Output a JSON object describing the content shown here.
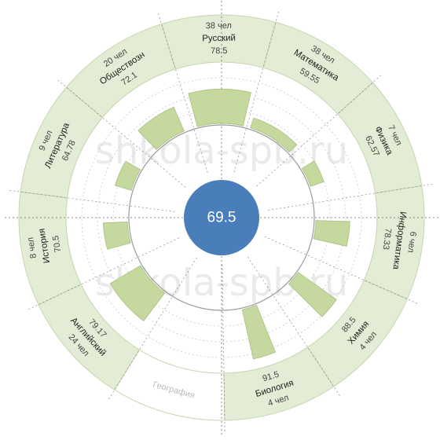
{
  "watermark": "shkola-spb.ru",
  "chart_data": {
    "type": "polar-bar",
    "center_value": "69.5",
    "categories": [
      {
        "name": "Математика",
        "count": "38 чел",
        "value": 59.55,
        "value_label": "59.55"
      },
      {
        "name": "Физика",
        "count": "7 чел",
        "value": 62.57,
        "value_label": "62.57"
      },
      {
        "name": "Информатика",
        "count": "6 чел",
        "value": 78.33,
        "value_label": "78.33"
      },
      {
        "name": "Химия",
        "count": "4 чел",
        "value": 88.5,
        "value_label": "88.5"
      },
      {
        "name": "Биология",
        "count": "4 чел",
        "value": 91.5,
        "value_label": "91.5"
      },
      {
        "name": "География",
        "count": "",
        "value": null,
        "value_label": ""
      },
      {
        "name": "Английский",
        "count": "24 чел",
        "value": 79.17,
        "value_label": "79.17"
      },
      {
        "name": "История",
        "count": "8 чел",
        "value": 70.5,
        "value_label": "70.5"
      },
      {
        "name": "Литература",
        "count": "9 чел",
        "value": 64.78,
        "value_label": "64.78"
      },
      {
        "name": "Обществозн",
        "count": "20 чел",
        "value": 72.1,
        "value_label": "72.1"
      },
      {
        "name": "Русский",
        "count": "38 чел",
        "value": 78.5,
        "value_label": "78.5"
      }
    ],
    "colors": {
      "ring_fill": "#e3ecd4",
      "ring_stroke": "#c6d5b0",
      "bar_fill": "#c5d89e",
      "bar_stroke": "#a9bf82",
      "center_fill": "#4a7ebb",
      "grid": "#9a9a9a"
    }
  }
}
